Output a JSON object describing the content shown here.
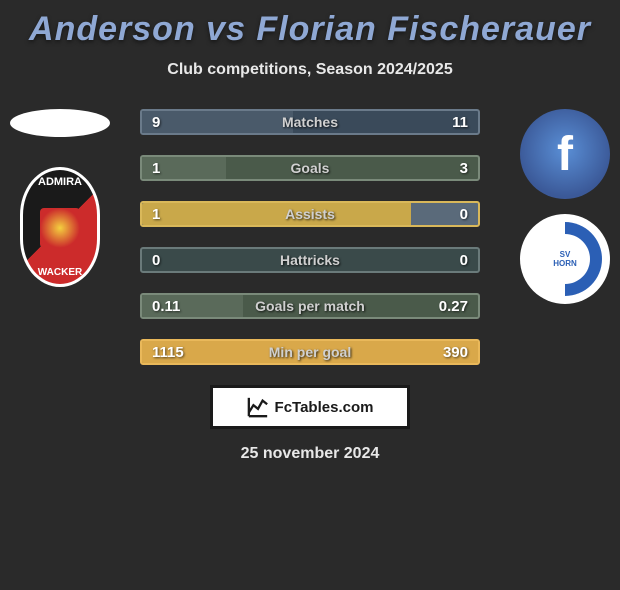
{
  "title": "Anderson vs Florian Fischerauer",
  "subtitle": "Club competitions, Season 2024/2025",
  "date": "25 november 2024",
  "footer_label": "FcTables.com",
  "left_club": {
    "top": "ADMIRA",
    "bottom": "WACKER"
  },
  "right_club": {
    "top": "SV",
    "bottom": "HORN"
  },
  "bars": [
    {
      "label": "Matches",
      "left_val": "9",
      "right_val": "11",
      "fill_pct": 45,
      "fill_color": "#4a5a6a",
      "outer_color": "#3a4a5a",
      "border_color": "#6a7a8a"
    },
    {
      "label": "Goals",
      "left_val": "1",
      "right_val": "3",
      "fill_pct": 25,
      "fill_color": "#5a6a5a",
      "outer_color": "#4a5a4a",
      "border_color": "#7a8a7a"
    },
    {
      "label": "Assists",
      "left_val": "1",
      "right_val": "0",
      "fill_pct": 80,
      "fill_color": "#c9a84a",
      "outer_color": "#5a6a7a",
      "border_color": "#d9b85a"
    },
    {
      "label": "Hattricks",
      "left_val": "0",
      "right_val": "0",
      "fill_pct": 0,
      "fill_color": "#5a6a5a",
      "outer_color": "#3a4a4a",
      "border_color": "#6a7a7a"
    },
    {
      "label": "Goals per match",
      "left_val": "0.11",
      "right_val": "0.27",
      "fill_pct": 30,
      "fill_color": "#5a6a5a",
      "outer_color": "#4a5a4a",
      "border_color": "#7a8a7a"
    },
    {
      "label": "Min per goal",
      "left_val": "1115",
      "right_val": "390",
      "fill_pct": 100,
      "fill_color": "#d9a84a",
      "outer_color": "#c9983a",
      "border_color": "#e9b85a"
    }
  ]
}
